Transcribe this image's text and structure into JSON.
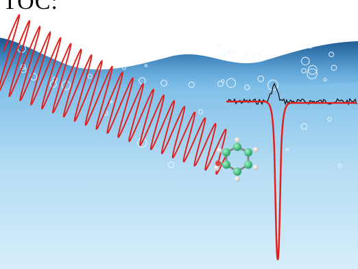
{
  "label": "TOC:"
}
